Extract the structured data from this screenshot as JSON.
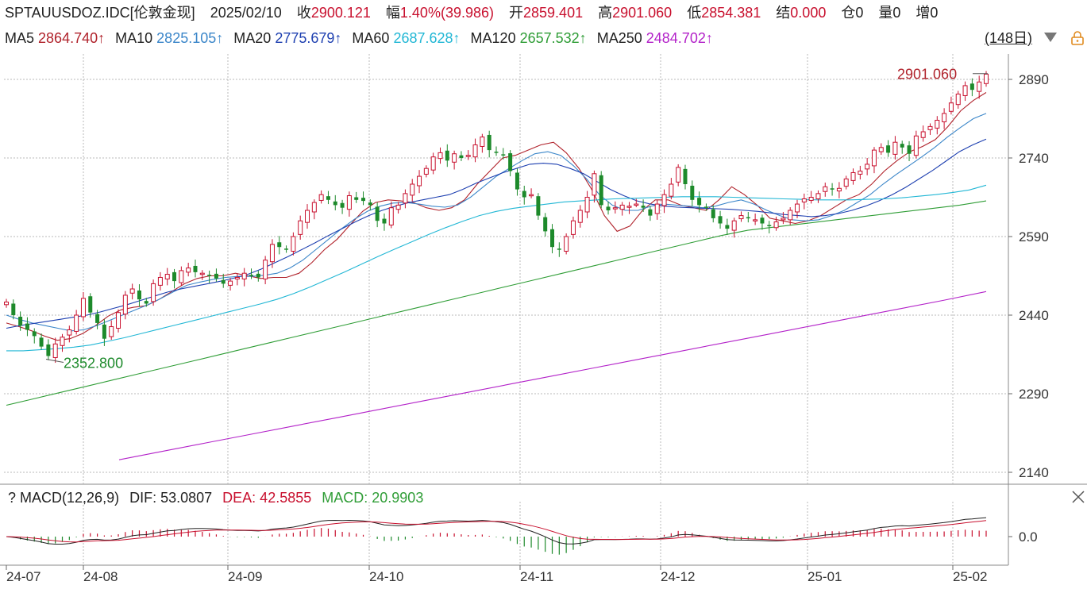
{
  "header": {
    "symbol": "SPTAUUSDOZ.IDC[伦敦金现]",
    "date": "2025/02/10",
    "close_label": "收",
    "close_value": "2900.121",
    "change_label": "幅",
    "change_value": "1.40%(39.986)",
    "open_label": "开",
    "open_value": "2859.401",
    "high_label": "高",
    "high_value": "2901.060",
    "low_label": "低",
    "low_value": "2854.381",
    "settle_label": "结",
    "settle_value": "0.000",
    "oi_label": "仓",
    "oi_value": "0",
    "vol_label": "量",
    "vol_value": "0",
    "inc_label": "增",
    "inc_value": "0"
  },
  "ma_legend": [
    {
      "name": "MA5",
      "value": "2864.740↑",
      "color": "#b0222b"
    },
    {
      "name": "MA10",
      "value": "2825.105↑",
      "color": "#3b86c9"
    },
    {
      "name": "MA20",
      "value": "2775.679↑",
      "color": "#1d3fb0"
    },
    {
      "name": "MA60",
      "value": "2687.628↑",
      "color": "#22b7d5"
    },
    {
      "name": "MA120",
      "value": "2657.532↑",
      "color": "#2f9d36"
    },
    {
      "name": "MA250",
      "value": "2484.702↑",
      "color": "#b322c9"
    }
  ],
  "period_label": "(148日)",
  "macd_legend": {
    "help": "?",
    "title": "MACD(12,26,9)",
    "dif": "DIF: 53.0807",
    "dea": "DEA: 42.5855",
    "macd": "MACD: 20.9903"
  },
  "annotations": {
    "high_label": "2901.060",
    "low_label": "2352.800"
  },
  "colors": {
    "up": "#c8102e",
    "down": "#1d8a2b",
    "grid": "#b9b9b9"
  },
  "chart_data": {
    "type": "candlestick",
    "ylim": [
      2100,
      2960
    ],
    "y_ticks": [
      2890,
      2740,
      2590,
      2440,
      2290,
      2140
    ],
    "x_ticks": [
      "24-07",
      "24-08",
      "24-09",
      "24-10",
      "24-11",
      "24-12",
      "25-01",
      "25-02"
    ],
    "candles_close": [
      2465,
      2440,
      2420,
      2412,
      2400,
      2380,
      2362,
      2385,
      2398,
      2412,
      2440,
      2472,
      2445,
      2425,
      2395,
      2418,
      2445,
      2478,
      2490,
      2470,
      2462,
      2500,
      2512,
      2518,
      2505,
      2525,
      2530,
      2522,
      2520,
      2515,
      2510,
      2500,
      2505,
      2512,
      2520,
      2515,
      2512,
      2545,
      2575,
      2570,
      2565,
      2590,
      2620,
      2640,
      2655,
      2670,
      2660,
      2650,
      2645,
      2668,
      2660,
      2658,
      2650,
      2620,
      2615,
      2645,
      2650,
      2672,
      2690,
      2705,
      2720,
      2742,
      2750,
      2735,
      2748,
      2740,
      2745,
      2765,
      2780,
      2755,
      2750,
      2745,
      2715,
      2680,
      2665,
      2670,
      2630,
      2600,
      2570,
      2565,
      2590,
      2620,
      2640,
      2665,
      2710,
      2650,
      2640,
      2645,
      2650,
      2648,
      2652,
      2645,
      2630,
      2652,
      2670,
      2690,
      2722,
      2690,
      2660,
      2650,
      2645,
      2625,
      2615,
      2605,
      2620,
      2630,
      2625,
      2622,
      2615,
      2610,
      2618,
      2625,
      2640,
      2652,
      2662,
      2665,
      2672,
      2685,
      2680,
      2682,
      2700,
      2712,
      2715,
      2728,
      2755,
      2760,
      2750,
      2770,
      2760,
      2748,
      2782,
      2790,
      2800,
      2812,
      2825,
      2845,
      2862,
      2878,
      2870,
      2885,
      2900
    ],
    "ma_lines": {
      "MA5": [
        2425,
        2418,
        2410,
        2400,
        2392,
        2395,
        2405,
        2420,
        2438,
        2450,
        2455,
        2458,
        2470,
        2485,
        2500,
        2510,
        2515,
        2515,
        2520,
        2515,
        2510,
        2512,
        2512,
        2520,
        2540,
        2565,
        2585,
        2612,
        2638,
        2655,
        2660,
        2658,
        2655,
        2645,
        2640,
        2645,
        2660,
        2690,
        2715,
        2740,
        2745,
        2755,
        2765,
        2770,
        2750,
        2720,
        2680,
        2630,
        2600,
        2610,
        2640,
        2660,
        2660,
        2650,
        2645,
        2640,
        2660,
        2685,
        2670,
        2650,
        2625,
        2620,
        2615,
        2620,
        2630,
        2645,
        2660,
        2670,
        2690,
        2715,
        2735,
        2752,
        2762,
        2775,
        2800,
        2830,
        2850,
        2865
      ],
      "MA10": [
        2440,
        2432,
        2425,
        2420,
        2415,
        2410,
        2412,
        2420,
        2430,
        2440,
        2450,
        2460,
        2472,
        2485,
        2497,
        2503,
        2508,
        2512,
        2514,
        2514,
        2516,
        2520,
        2530,
        2545,
        2565,
        2585,
        2605,
        2623,
        2638,
        2648,
        2654,
        2655,
        2652,
        2648,
        2646,
        2650,
        2665,
        2685,
        2705,
        2720,
        2735,
        2748,
        2752,
        2745,
        2725,
        2700,
        2670,
        2650,
        2640,
        2640,
        2648,
        2652,
        2650,
        2648,
        2645,
        2648,
        2655,
        2660,
        2652,
        2640,
        2630,
        2622,
        2620,
        2622,
        2630,
        2640,
        2655,
        2670,
        2690,
        2708,
        2725,
        2742,
        2760,
        2780,
        2798,
        2815,
        2825
      ],
      "MA20": [
        2415,
        2420,
        2424,
        2428,
        2432,
        2436,
        2440,
        2446,
        2453,
        2460,
        2468,
        2476,
        2484,
        2490,
        2495,
        2500,
        2505,
        2511,
        2518,
        2528,
        2540,
        2552,
        2565,
        2578,
        2592,
        2605,
        2618,
        2630,
        2640,
        2648,
        2655,
        2660,
        2665,
        2670,
        2680,
        2692,
        2702,
        2712,
        2720,
        2728,
        2730,
        2728,
        2720,
        2710,
        2695,
        2680,
        2668,
        2658,
        2652,
        2648,
        2646,
        2645,
        2644,
        2643,
        2642,
        2640,
        2638,
        2635,
        2632,
        2630,
        2628,
        2630,
        2634,
        2640,
        2648,
        2658,
        2670,
        2684,
        2700,
        2716,
        2734,
        2752,
        2765,
        2776
      ],
      "MA60": [
        2372,
        2372,
        2374,
        2376,
        2379,
        2383,
        2390,
        2397,
        2405,
        2413,
        2421,
        2429,
        2437,
        2445,
        2453,
        2461,
        2470,
        2481,
        2494,
        2508,
        2522,
        2537,
        2552,
        2566,
        2580,
        2594,
        2607,
        2619,
        2630,
        2638,
        2644,
        2648,
        2652,
        2656,
        2658,
        2660,
        2662,
        2663,
        2664,
        2665,
        2666,
        2666,
        2666,
        2665,
        2664,
        2663,
        2662,
        2661,
        2660,
        2660,
        2660,
        2661,
        2662,
        2664,
        2667,
        2670,
        2674,
        2679,
        2688
      ],
      "MA120": [
        2268,
        2280,
        2292,
        2304,
        2316,
        2328,
        2340,
        2352,
        2364,
        2376,
        2388,
        2400,
        2412,
        2424,
        2436,
        2448,
        2460,
        2472,
        2484,
        2496,
        2508,
        2520,
        2532,
        2544,
        2556,
        2568,
        2580,
        2592,
        2602,
        2608,
        2614,
        2620,
        2626,
        2632,
        2638,
        2644,
        2650,
        2658
      ],
      "MA250": [
        2164,
        2180,
        2196,
        2212,
        2228,
        2244,
        2260,
        2276,
        2292,
        2308,
        2324,
        2340,
        2356,
        2372,
        2388,
        2404,
        2420,
        2436,
        2452,
        2468,
        2485
      ]
    },
    "macd": {
      "dif_last": 53.0807,
      "dea_last": 42.5855,
      "macd_last": 20.9903,
      "y_tick": "0.0"
    }
  }
}
